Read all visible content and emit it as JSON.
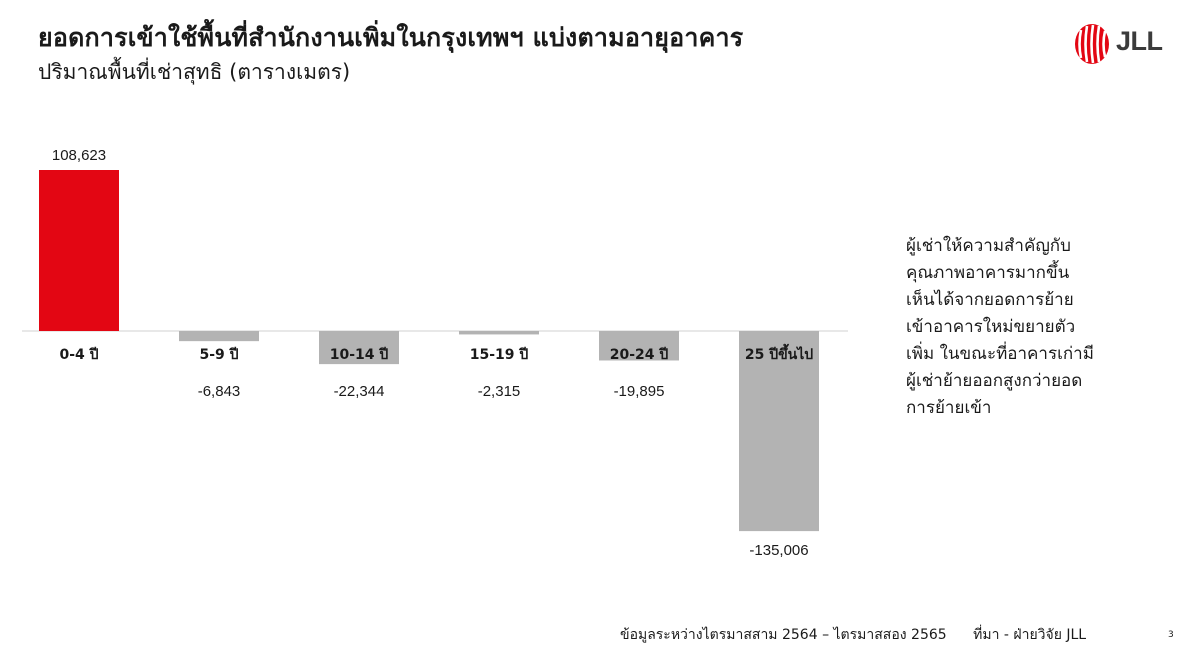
{
  "title": "ยอดการเข้าใช้พื้นที่สำนักงานเพิ่มในกรุงเทพฯ แบ่งตามอายุอาคาร",
  "subtitle": "ปริมาณพื้นที่เช่าสุทธิ (ตารางเมตร)",
  "logo": {
    "text": "JLL",
    "color": "#e30613"
  },
  "note_lines": [
    "ผู้เช่าให้ความสำคัญกับ",
    "คุณภาพอาคารมากขึ้น",
    "เห็นได้จากยอดการย้าย",
    "เข้าอาคารใหม่ขยายตัว",
    "เพิ่ม ในขณะที่อาคารเก่ามี",
    "ผู้เช่าย้ายออกสูงกว่ายอด",
    "การย้ายเข้า"
  ],
  "footer": {
    "period": "ข้อมูลระหว่างไตรมาสสาม 2564 – ไตรมาสสอง 2565",
    "source": "ที่มา - ฝ่ายวิจัย JLL",
    "page": "3"
  },
  "colors": {
    "positive": "#e30613",
    "negative": "#b3b3b3",
    "axis": "#d9d9d9",
    "text": "#1a1a1a"
  },
  "chart_data": {
    "type": "bar",
    "categories": [
      "0-4 ปี",
      "5-9 ปี",
      "10-14 ปี",
      "15-19 ปี",
      "20-24 ปี",
      "25 ปีขึ้นไป"
    ],
    "values": [
      108623,
      -6843,
      -22344,
      -2315,
      -19895,
      -135006
    ],
    "data_labels": [
      "108,623",
      "-6,843",
      "-22,344",
      "-2,315",
      "-19,895",
      "-135,006"
    ],
    "grid": false,
    "legend": "none"
  }
}
